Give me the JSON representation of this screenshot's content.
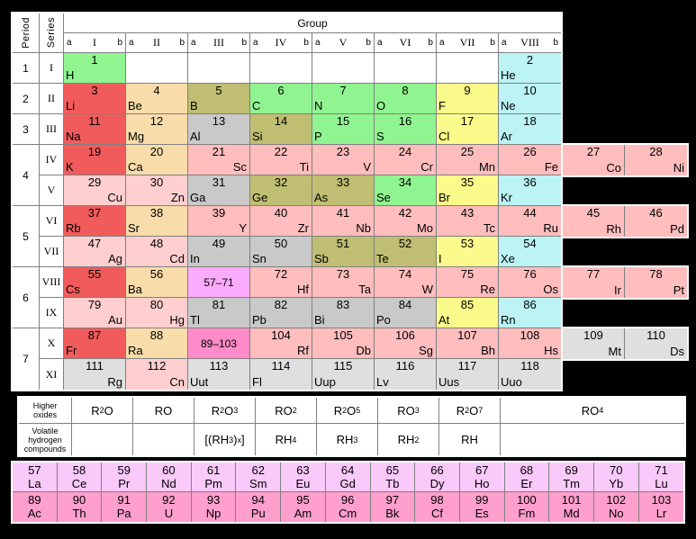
{
  "header": {
    "group": "Group",
    "period": "Period",
    "series": "Series",
    "sub_a": "a",
    "sub_b": "b"
  },
  "groups": [
    "I",
    "II",
    "III",
    "IV",
    "V",
    "VI",
    "VII",
    "VIII"
  ],
  "periods": [
    {
      "label": "1",
      "rows": 1
    },
    {
      "label": "2",
      "rows": 1
    },
    {
      "label": "3",
      "rows": 1
    },
    {
      "label": "4",
      "rows": 2
    },
    {
      "label": "5",
      "rows": 2
    },
    {
      "label": "6",
      "rows": 2
    },
    {
      "label": "7",
      "rows": 2
    }
  ],
  "series": [
    "I",
    "II",
    "III",
    "IV",
    "V",
    "VI",
    "VII",
    "VIII",
    "IX",
    "X",
    "XI"
  ],
  "colors": {
    "alkali": "#F15B5B",
    "alkaline": "#F8DCA9",
    "metalloid": "#BFBE72",
    "nonmetal": "#90F590",
    "halogen": "#FBFB8B",
    "noble": "#BCF4F6",
    "tm": "#FFBDBD",
    "tm2": "#FFCFCF",
    "post": "#C9C9C9",
    "unknown": "#DFDFDF",
    "lanref": "#FAABFB",
    "lan": "#F9C9F9",
    "actref": "#FF8BC9",
    "act": "#FF9FCD",
    "border_inner": "#808080",
    "border_outer": "#FFFFFF",
    "background": "#000000"
  },
  "grid": [
    [
      {
        "num": "1",
        "sym": "H",
        "cat": "nonmetal",
        "side": "a"
      },
      null,
      null,
      null,
      null,
      null,
      null,
      {
        "num": "2",
        "sym": "He",
        "cat": "noble",
        "side": "a"
      }
    ],
    [
      {
        "num": "3",
        "sym": "Li",
        "cat": "alkali",
        "side": "a"
      },
      {
        "num": "4",
        "sym": "Be",
        "cat": "alkaline",
        "side": "a"
      },
      {
        "num": "5",
        "sym": "B",
        "cat": "metalloid",
        "side": "a"
      },
      {
        "num": "6",
        "sym": "C",
        "cat": "nonmetal",
        "side": "a"
      },
      {
        "num": "7",
        "sym": "N",
        "cat": "nonmetal",
        "side": "a"
      },
      {
        "num": "8",
        "sym": "O",
        "cat": "nonmetal",
        "side": "a"
      },
      {
        "num": "9",
        "sym": "F",
        "cat": "halogen",
        "side": "a"
      },
      {
        "num": "10",
        "sym": "Ne",
        "cat": "noble",
        "side": "a"
      }
    ],
    [
      {
        "num": "11",
        "sym": "Na",
        "cat": "alkali",
        "side": "a"
      },
      {
        "num": "12",
        "sym": "Mg",
        "cat": "alkaline",
        "side": "a"
      },
      {
        "num": "13",
        "sym": "Al",
        "cat": "post",
        "side": "a"
      },
      {
        "num": "14",
        "sym": "Si",
        "cat": "metalloid",
        "side": "a"
      },
      {
        "num": "15",
        "sym": "P",
        "cat": "nonmetal",
        "side": "a"
      },
      {
        "num": "16",
        "sym": "S",
        "cat": "nonmetal",
        "side": "a"
      },
      {
        "num": "17",
        "sym": "Cl",
        "cat": "halogen",
        "side": "a"
      },
      {
        "num": "18",
        "sym": "Ar",
        "cat": "noble",
        "side": "a"
      }
    ],
    [
      {
        "num": "19",
        "sym": "K",
        "cat": "alkali",
        "side": "a"
      },
      {
        "num": "20",
        "sym": "Ca",
        "cat": "alkaline",
        "side": "a"
      },
      {
        "num": "21",
        "sym": "Sc",
        "cat": "tm",
        "side": "b"
      },
      {
        "num": "22",
        "sym": "Ti",
        "cat": "tm",
        "side": "b"
      },
      {
        "num": "23",
        "sym": "V",
        "cat": "tm",
        "side": "b"
      },
      {
        "num": "24",
        "sym": "Cr",
        "cat": "tm",
        "side": "b"
      },
      {
        "num": "25",
        "sym": "Mn",
        "cat": "tm",
        "side": "b"
      },
      {
        "num": "26",
        "sym": "Fe",
        "cat": "tm",
        "side": "b"
      }
    ],
    [
      {
        "num": "29",
        "sym": "Cu",
        "cat": "tm2",
        "side": "b"
      },
      {
        "num": "30",
        "sym": "Zn",
        "cat": "tm2",
        "side": "b"
      },
      {
        "num": "31",
        "sym": "Ga",
        "cat": "post",
        "side": "a"
      },
      {
        "num": "32",
        "sym": "Ge",
        "cat": "metalloid",
        "side": "a"
      },
      {
        "num": "33",
        "sym": "As",
        "cat": "metalloid",
        "side": "a"
      },
      {
        "num": "34",
        "sym": "Se",
        "cat": "nonmetal",
        "side": "a"
      },
      {
        "num": "35",
        "sym": "Br",
        "cat": "halogen",
        "side": "a"
      },
      {
        "num": "36",
        "sym": "Kr",
        "cat": "noble",
        "side": "a"
      }
    ],
    [
      {
        "num": "37",
        "sym": "Rb",
        "cat": "alkali",
        "side": "a"
      },
      {
        "num": "38",
        "sym": "Sr",
        "cat": "alkaline",
        "side": "a"
      },
      {
        "num": "39",
        "sym": "Y",
        "cat": "tm",
        "side": "b"
      },
      {
        "num": "40",
        "sym": "Zr",
        "cat": "tm",
        "side": "b"
      },
      {
        "num": "41",
        "sym": "Nb",
        "cat": "tm",
        "side": "b"
      },
      {
        "num": "42",
        "sym": "Mo",
        "cat": "tm",
        "side": "b"
      },
      {
        "num": "43",
        "sym": "Tc",
        "cat": "tm",
        "side": "b"
      },
      {
        "num": "44",
        "sym": "Ru",
        "cat": "tm",
        "side": "b"
      }
    ],
    [
      {
        "num": "47",
        "sym": "Ag",
        "cat": "tm2",
        "side": "b"
      },
      {
        "num": "48",
        "sym": "Cd",
        "cat": "tm2",
        "side": "b"
      },
      {
        "num": "49",
        "sym": "In",
        "cat": "post",
        "side": "a"
      },
      {
        "num": "50",
        "sym": "Sn",
        "cat": "post",
        "side": "a"
      },
      {
        "num": "51",
        "sym": "Sb",
        "cat": "metalloid",
        "side": "a"
      },
      {
        "num": "52",
        "sym": "Te",
        "cat": "metalloid",
        "side": "a"
      },
      {
        "num": "53",
        "sym": "I",
        "cat": "halogen",
        "side": "a"
      },
      {
        "num": "54",
        "sym": "Xe",
        "cat": "noble",
        "side": "a"
      }
    ],
    [
      {
        "num": "55",
        "sym": "Cs",
        "cat": "alkali",
        "side": "a"
      },
      {
        "num": "56",
        "sym": "Ba",
        "cat": "alkaline",
        "side": "a"
      },
      {
        "ref": "57–71",
        "cat": "lanref"
      },
      {
        "num": "72",
        "sym": "Hf",
        "cat": "tm",
        "side": "b"
      },
      {
        "num": "73",
        "sym": "Ta",
        "cat": "tm",
        "side": "b"
      },
      {
        "num": "74",
        "sym": "W",
        "cat": "tm",
        "side": "b"
      },
      {
        "num": "75",
        "sym": "Re",
        "cat": "tm",
        "side": "b"
      },
      {
        "num": "76",
        "sym": "Os",
        "cat": "tm",
        "side": "b"
      }
    ],
    [
      {
        "num": "79",
        "sym": "Au",
        "cat": "tm2",
        "side": "b"
      },
      {
        "num": "80",
        "sym": "Hg",
        "cat": "tm2",
        "side": "b"
      },
      {
        "num": "81",
        "sym": "Tl",
        "cat": "post",
        "side": "a"
      },
      {
        "num": "82",
        "sym": "Pb",
        "cat": "post",
        "side": "a"
      },
      {
        "num": "83",
        "sym": "Bi",
        "cat": "post",
        "side": "a"
      },
      {
        "num": "84",
        "sym": "Po",
        "cat": "post",
        "side": "a"
      },
      {
        "num": "85",
        "sym": "At",
        "cat": "halogen",
        "side": "a"
      },
      {
        "num": "86",
        "sym": "Rn",
        "cat": "noble",
        "side": "a"
      }
    ],
    [
      {
        "num": "87",
        "sym": "Fr",
        "cat": "alkali",
        "side": "a"
      },
      {
        "num": "88",
        "sym": "Ra",
        "cat": "alkaline",
        "side": "a"
      },
      {
        "ref": "89–103",
        "cat": "actref"
      },
      {
        "num": "104",
        "sym": "Rf",
        "cat": "tm",
        "side": "b"
      },
      {
        "num": "105",
        "sym": "Db",
        "cat": "tm",
        "side": "b"
      },
      {
        "num": "106",
        "sym": "Sg",
        "cat": "tm",
        "side": "b"
      },
      {
        "num": "107",
        "sym": "Bh",
        "cat": "tm",
        "side": "b"
      },
      {
        "num": "108",
        "sym": "Hs",
        "cat": "tm",
        "side": "b"
      }
    ],
    [
      {
        "num": "111",
        "sym": "Rg",
        "cat": "unknown",
        "side": "b"
      },
      {
        "num": "112",
        "sym": "Cn",
        "cat": "tm2",
        "side": "b"
      },
      {
        "num": "113",
        "sym": "Uut",
        "cat": "unknown",
        "side": "a"
      },
      {
        "num": "114",
        "sym": "Fl",
        "cat": "unknown",
        "side": "a"
      },
      {
        "num": "115",
        "sym": "Uup",
        "cat": "unknown",
        "side": "a"
      },
      {
        "num": "116",
        "sym": "Lv",
        "cat": "unknown",
        "side": "a"
      },
      {
        "num": "117",
        "sym": "Uus",
        "cat": "unknown",
        "side": "a"
      },
      {
        "num": "118",
        "sym": "Uuo",
        "cat": "unknown",
        "side": "a"
      }
    ]
  ],
  "triads": [
    {
      "series_index": 3,
      "cells": [
        {
          "num": "27",
          "sym": "Co",
          "cat": "tm",
          "side": "b"
        },
        {
          "num": "28",
          "sym": "Ni",
          "cat": "tm",
          "side": "b"
        }
      ]
    },
    {
      "series_index": 5,
      "cells": [
        {
          "num": "45",
          "sym": "Rh",
          "cat": "tm",
          "side": "b"
        },
        {
          "num": "46",
          "sym": "Pd",
          "cat": "tm",
          "side": "b"
        }
      ]
    },
    {
      "series_index": 7,
      "cells": [
        {
          "num": "77",
          "sym": "Ir",
          "cat": "tm",
          "side": "b"
        },
        {
          "num": "78",
          "sym": "Pt",
          "cat": "tm",
          "side": "b"
        }
      ]
    },
    {
      "series_index": 9,
      "cells": [
        {
          "num": "109",
          "sym": "Mt",
          "cat": "unknown",
          "side": "b"
        },
        {
          "num": "110",
          "sym": "Ds",
          "cat": "unknown",
          "side": "b"
        }
      ]
    }
  ],
  "oxides": {
    "label": "Higher oxides",
    "values": [
      "R~2~O",
      "RO",
      "R~2~O~3~",
      "RO~2~",
      "R~2~O~5~",
      "RO~3~",
      "R~2~O~7~",
      "RO~4~"
    ]
  },
  "hydrides": {
    "label": "Volatile hydrogen compounds",
    "values": [
      "",
      "",
      "[(RH~3~)~x~]",
      "RH~4~",
      "RH~3~",
      "RH~2~",
      "RH",
      ""
    ]
  },
  "fblock": {
    "lanthanides": {
      "cat": "lan",
      "cells": [
        {
          "num": "57",
          "sym": "La"
        },
        {
          "num": "58",
          "sym": "Ce"
        },
        {
          "num": "59",
          "sym": "Pr"
        },
        {
          "num": "60",
          "sym": "Nd"
        },
        {
          "num": "61",
          "sym": "Pm"
        },
        {
          "num": "62",
          "sym": "Sm"
        },
        {
          "num": "63",
          "sym": "Eu"
        },
        {
          "num": "64",
          "sym": "Gd"
        },
        {
          "num": "65",
          "sym": "Tb"
        },
        {
          "num": "66",
          "sym": "Dy"
        },
        {
          "num": "67",
          "sym": "Ho"
        },
        {
          "num": "68",
          "sym": "Er"
        },
        {
          "num": "69",
          "sym": "Tm"
        },
        {
          "num": "70",
          "sym": "Yb"
        },
        {
          "num": "71",
          "sym": "Lu"
        }
      ]
    },
    "actinides": {
      "cat": "act",
      "cells": [
        {
          "num": "89",
          "sym": "Ac"
        },
        {
          "num": "90",
          "sym": "Th"
        },
        {
          "num": "91",
          "sym": "Pa"
        },
        {
          "num": "92",
          "sym": "U"
        },
        {
          "num": "93",
          "sym": "Np"
        },
        {
          "num": "94",
          "sym": "Pu"
        },
        {
          "num": "95",
          "sym": "Am"
        },
        {
          "num": "96",
          "sym": "Cm"
        },
        {
          "num": "97",
          "sym": "Bk"
        },
        {
          "num": "98",
          "sym": "Cf"
        },
        {
          "num": "99",
          "sym": "Es"
        },
        {
          "num": "100",
          "sym": "Fm"
        },
        {
          "num": "101",
          "sym": "Md"
        },
        {
          "num": "102",
          "sym": "No"
        },
        {
          "num": "103",
          "sym": "Lr"
        }
      ]
    }
  }
}
